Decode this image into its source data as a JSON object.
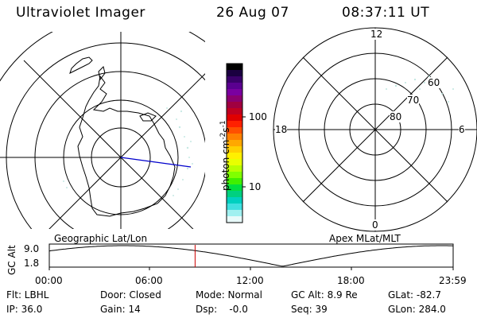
{
  "header": {
    "instrument": "Ultraviolet Imager",
    "date": "26 Aug 07",
    "time": "08:37:11 UT"
  },
  "colorbar": {
    "label_html": "photon cm",
    "label_sup1": "-2",
    "label_s": "s",
    "label_sup2": "-1",
    "ticks": [
      "100",
      "10"
    ],
    "colors": [
      "#000000",
      "#1a0040",
      "#3a006a",
      "#5a0090",
      "#7a00a0",
      "#8a0070",
      "#a00040",
      "#c00020",
      "#e00000",
      "#ff2000",
      "#ff5000",
      "#ff8000",
      "#ffa800",
      "#ffd000",
      "#fff000",
      "#e8ff00",
      "#b8ff00",
      "#80ff00",
      "#40f000",
      "#00e040",
      "#00d080",
      "#00d0c0",
      "#40e0e0",
      "#a0f0f0",
      "#e8fafa"
    ]
  },
  "left_map": {
    "label": "Geographic Lat/Lon"
  },
  "right_map": {
    "label": "Apex MLat/MLT",
    "mlt_labels": {
      "top": "12",
      "left": "18",
      "right": "6",
      "bottom": "0"
    },
    "lat_labels": [
      "60",
      "70",
      "80"
    ]
  },
  "orbit_plot": {
    "ylabel": "GC Alt",
    "yticks": [
      "9.0",
      "1.8"
    ],
    "xticks": [
      "00:00",
      "06:00",
      "12:00",
      "18:00",
      "23:59"
    ],
    "current_time_fraction": 0.361
  },
  "info": {
    "flt": "Flt: LBHL",
    "ip": "IP: 36.0",
    "door": "Door: Closed",
    "gain": "Gain: 14",
    "mode": "Mode: Normal",
    "dsp": "Dsp:    -0.0",
    "gcalt": "GC Alt: 8.9 Re",
    "seq": "Seq: 39",
    "glat": "GLat: -82.7",
    "glon": "GLon: 284.0"
  },
  "colors": {
    "grid": "#000000",
    "meridian": "#0000cc",
    "marker": "#cc0000",
    "aurora": "#bfe6e0"
  }
}
